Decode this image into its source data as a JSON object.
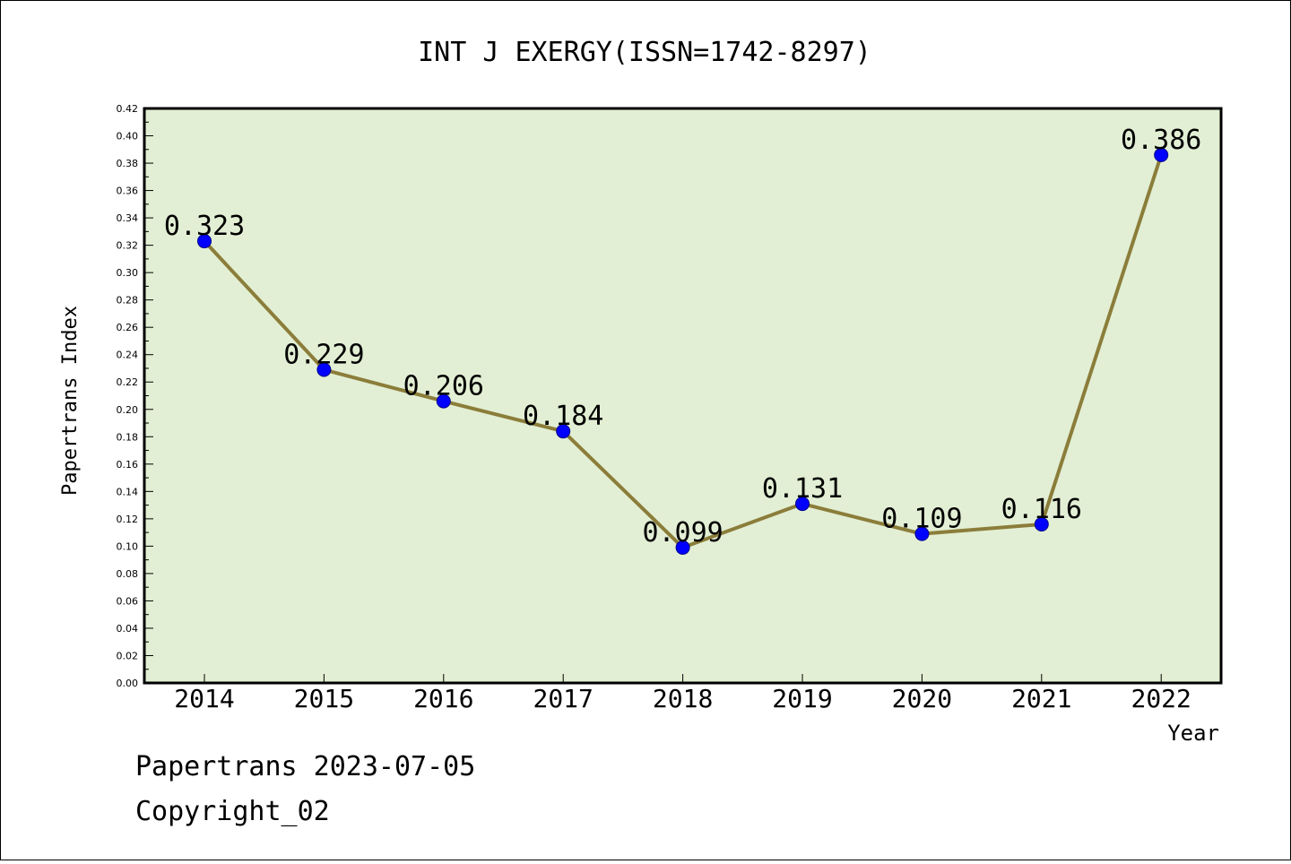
{
  "chart_data": {
    "type": "line",
    "title": "INT J EXERGY(ISSN=1742-8297)",
    "xlabel": "Year",
    "ylabel": "Papertrans Index",
    "categories": [
      "2014",
      "2015",
      "2016",
      "2017",
      "2018",
      "2019",
      "2020",
      "2021",
      "2022"
    ],
    "series": [
      {
        "values": [
          0.323,
          0.229,
          0.206,
          0.184,
          0.099,
          0.131,
          0.109,
          0.116,
          0.386
        ],
        "data_labels": [
          "0.323",
          "0.229",
          "0.206",
          "0.184",
          "0.099",
          "0.131",
          "0.109",
          "0.116",
          "0.386"
        ]
      }
    ],
    "ylim": [
      0,
      0.42
    ],
    "ytick_step": 0.02,
    "ytick_labels": [
      "0.00",
      "0.02",
      "0.04",
      "0.06",
      "0.08",
      "0.10",
      "0.12",
      "0.14",
      "0.16",
      "0.18",
      "0.20",
      "0.22",
      "0.24",
      "0.26",
      "0.28",
      "0.30",
      "0.32",
      "0.34",
      "0.36",
      "0.38",
      "0.40",
      "0.42"
    ],
    "grid": false,
    "colors": {
      "line": "#8b7d3a",
      "marker": "#0000ff",
      "plot_background": "#e2efd4"
    }
  },
  "footer": {
    "line1": "Papertrans 2023-07-05",
    "line2": "Copyright_02"
  }
}
